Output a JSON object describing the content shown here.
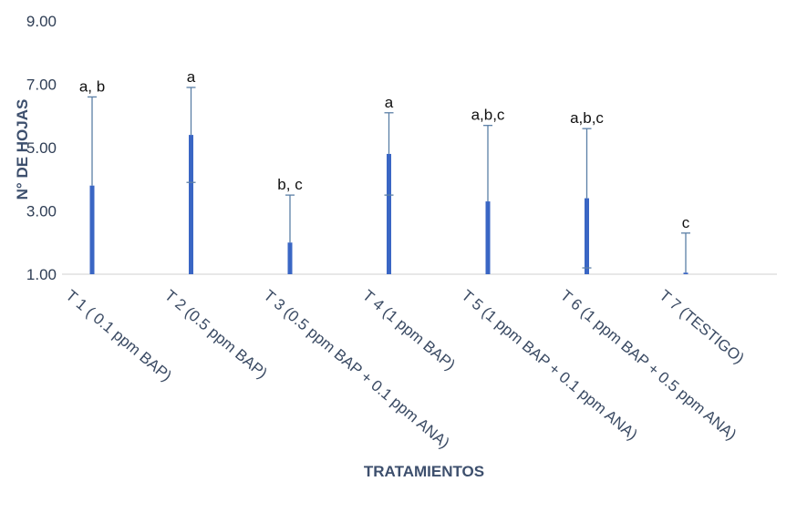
{
  "chart_data": {
    "type": "bar",
    "title": "",
    "xlabel": "TRATAMIENTOS",
    "ylabel": "N° DE HOJAS",
    "ylim": [
      1,
      9
    ],
    "yticks": [
      1,
      3,
      5,
      7,
      9
    ],
    "ytick_labels": [
      "1.00",
      "3.00",
      "5.00",
      "7.00",
      "9.00"
    ],
    "grid": false,
    "categories": [
      "T 1 ( 0.1 ppm BAP)",
      "T 2 (0.5 ppm BAP)",
      "T 3 (0.5 ppm BAP + 0.1 ppm ANA)",
      "T 4 (1 ppm BAP)",
      "T 5 (1 ppm BAP + 0.1 ppm ANA)",
      "T 6 (1 ppm BAP + 0.5 ppm ANA)",
      "T 7 (TESTIGO)"
    ],
    "values": [
      3.8,
      5.4,
      2.0,
      4.8,
      3.3,
      3.4,
      1.05
    ],
    "error_upper": [
      6.6,
      6.9,
      3.5,
      6.1,
      5.7,
      5.6,
      2.3
    ],
    "error_lower": [
      null,
      3.9,
      null,
      3.5,
      null,
      1.2,
      null
    ],
    "significance": [
      "a, b",
      "a",
      "b, c",
      "a",
      "a,b,c",
      "a,b,c",
      "c"
    ],
    "colors": {
      "bar": "#3a66c4",
      "error": "#5b7fa6",
      "axis": "#d9d9d9"
    }
  }
}
